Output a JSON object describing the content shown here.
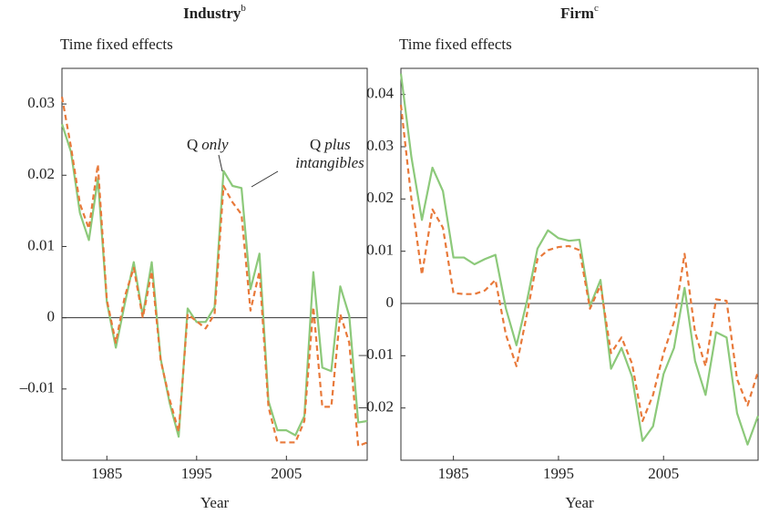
{
  "chart_data": [
    {
      "type": "line",
      "title": "Industry",
      "title_superscript": "b",
      "ylabel": "Time fixed effects",
      "xlabel": "Year",
      "x": [
        1980,
        1981,
        1982,
        1983,
        1984,
        1985,
        1986,
        1987,
        1988,
        1989,
        1990,
        1991,
        1992,
        1993,
        1994,
        1995,
        1996,
        1997,
        1998,
        1999,
        2000,
        2001,
        2002,
        2003,
        2004,
        2005,
        2006,
        2007,
        2008,
        2009,
        2010,
        2011,
        2012,
        2013,
        2014
      ],
      "series": [
        {
          "color": "#8cc97a",
          "dash": false,
          "values": [
            0.0272,
            0.0233,
            0.0147,
            0.0109,
            0.0195,
            0.0022,
            -0.0042,
            0.002,
            0.0078,
            0.0003,
            0.0078,
            -0.0058,
            -0.012,
            -0.0167,
            0.0013,
            -0.0006,
            -0.0006,
            0.0015,
            0.0206,
            0.0185,
            0.0182,
            0.004,
            0.009,
            -0.0117,
            -0.0158,
            -0.0158,
            -0.0165,
            -0.0138,
            0.0064,
            -0.007,
            -0.0075,
            0.0044,
            0.0003,
            -0.0147,
            -0.0145
          ]
        },
        {
          "color": "#e8793a",
          "dash": true,
          "values": [
            0.031,
            0.024,
            0.016,
            0.0125,
            0.0215,
            0.0025,
            -0.0035,
            0.003,
            0.007,
            0.0,
            0.0065,
            -0.006,
            -0.0115,
            -0.016,
            0.0005,
            -0.0005,
            -0.0015,
            0.0005,
            0.0185,
            0.0162,
            0.0145,
            0.001,
            0.0065,
            -0.0125,
            -0.0175,
            -0.0175,
            -0.0175,
            -0.0145,
            0.0015,
            -0.0125,
            -0.0125,
            0.0005,
            -0.0035,
            -0.018,
            -0.0175
          ]
        }
      ],
      "annotations": [
        {
          "text": "Q",
          "italic": [
            "only"
          ]
        },
        {
          "text": "Q",
          "italic": [
            "plus",
            "intangibles"
          ]
        }
      ],
      "xlim": [
        1980,
        2014
      ],
      "xticks": [
        1985,
        1995,
        2005
      ],
      "ylim": [
        -0.02,
        0.035
      ],
      "yticks": [
        {
          "value": -0.01,
          "label": "–0.01"
        },
        0,
        0.01,
        0.02,
        0.03
      ],
      "zero_line": true
    },
    {
      "type": "line",
      "title": "Firm",
      "title_superscript": "c",
      "ylabel": "Time fixed effects",
      "xlabel": "Year",
      "x": [
        1980,
        1981,
        1982,
        1983,
        1984,
        1985,
        1986,
        1987,
        1988,
        1989,
        1990,
        1991,
        1992,
        1993,
        1994,
        1995,
        1996,
        1997,
        1998,
        1999,
        2000,
        2001,
        2002,
        2003,
        2004,
        2005,
        2006,
        2007,
        2008,
        2009,
        2010,
        2011,
        2012,
        2013,
        2014
      ],
      "series": [
        {
          "color": "#8cc97a",
          "dash": false,
          "values": [
            0.044,
            0.028,
            0.016,
            0.026,
            0.0215,
            0.0088,
            0.0088,
            0.0075,
            0.0085,
            0.0093,
            -0.001,
            -0.008,
            0.0005,
            0.0105,
            0.014,
            0.0125,
            0.012,
            0.0122,
            -0.0005,
            0.0045,
            -0.0125,
            -0.0085,
            -0.014,
            -0.0263,
            -0.0235,
            -0.0135,
            -0.0085,
            0.003,
            -0.011,
            -0.0175,
            -0.0055,
            -0.0065,
            -0.021,
            -0.027,
            -0.0215
          ]
        },
        {
          "color": "#e8793a",
          "dash": true,
          "values": [
            0.038,
            0.02,
            0.0055,
            0.018,
            0.0145,
            0.002,
            0.0018,
            0.0018,
            0.0025,
            0.0045,
            -0.006,
            -0.012,
            -0.002,
            0.0085,
            0.0102,
            0.0108,
            0.011,
            0.0102,
            -0.001,
            0.0035,
            -0.0095,
            -0.0065,
            -0.0115,
            -0.0225,
            -0.0175,
            -0.0095,
            -0.0035,
            0.0095,
            -0.0055,
            -0.012,
            0.0008,
            0.0005,
            -0.0145,
            -0.0195,
            -0.013
          ]
        }
      ],
      "xlim": [
        1980,
        2014
      ],
      "xticks": [
        1985,
        1995,
        2005
      ],
      "ylim": [
        -0.03,
        0.045
      ],
      "yticks": [
        {
          "value": -0.02,
          "label": "–0.02"
        },
        {
          "value": -0.01,
          "label": "–0.01"
        },
        0,
        0.01,
        0.02,
        0.03,
        0.04
      ],
      "zero_line": true
    }
  ]
}
